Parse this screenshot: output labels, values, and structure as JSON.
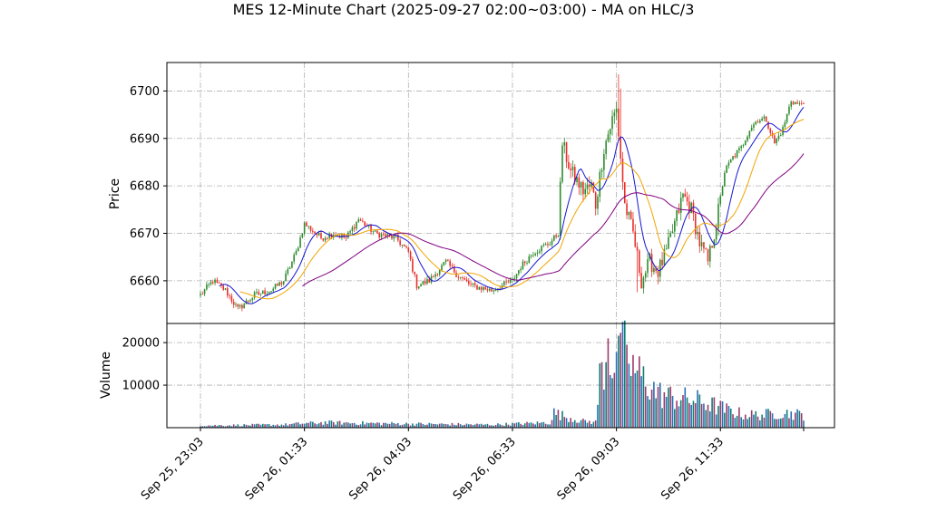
{
  "chart_data": {
    "type": "candlestick",
    "title": "MES 12-Minute Chart (2025-09-27 02:00~03:00) - MA on HLC/3",
    "grid": true,
    "grid_style": "dash-dot",
    "x_tick_labels": [
      "Sep 25, 23:03",
      "Sep 26, 01:33",
      "Sep 26, 04:03",
      "Sep 26, 06:33",
      "Sep 26, 09:03",
      "Sep 26, 11:33"
    ],
    "price_panel": {
      "ylabel": "Price",
      "ylim": [
        6651,
        6706
      ],
      "yticks": [
        6660,
        6670,
        6680,
        6690,
        6700
      ],
      "up_color": "#2e8b2e",
      "down_color": "#e8302a",
      "anchors": [
        [
          0,
          6657
        ],
        [
          6,
          6660
        ],
        [
          12,
          6658
        ],
        [
          18,
          6654
        ],
        [
          26,
          6657
        ],
        [
          34,
          6658
        ],
        [
          40,
          6660
        ],
        [
          46,
          6666
        ],
        [
          50,
          6672
        ],
        [
          58,
          6669
        ],
        [
          64,
          6670
        ],
        [
          70,
          6669
        ],
        [
          76,
          6673
        ],
        [
          84,
          6670
        ],
        [
          94,
          6669
        ],
        [
          100,
          6666
        ],
        [
          104,
          6659
        ],
        [
          110,
          6660
        ],
        [
          118,
          6664
        ],
        [
          124,
          6661
        ],
        [
          130,
          6659
        ],
        [
          140,
          6658
        ],
        [
          150,
          6660
        ],
        [
          154,
          6663
        ],
        [
          160,
          6666
        ],
        [
          168,
          6668
        ],
        [
          172,
          6670
        ],
        [
          174,
          6689
        ],
        [
          178,
          6683
        ],
        [
          184,
          6679
        ],
        [
          188,
          6680
        ],
        [
          190,
          6676
        ],
        [
          194,
          6688
        ],
        [
          198,
          6694
        ],
        [
          200,
          6696
        ],
        [
          201,
          6691
        ],
        [
          204,
          6676
        ],
        [
          208,
          6670
        ],
        [
          212,
          6660
        ],
        [
          216,
          6664
        ],
        [
          220,
          6662
        ],
        [
          224,
          6666
        ],
        [
          228,
          6672
        ],
        [
          232,
          6678
        ],
        [
          236,
          6675
        ],
        [
          240,
          6668
        ],
        [
          244,
          6664
        ],
        [
          248,
          6672
        ],
        [
          252,
          6683
        ],
        [
          256,
          6686
        ],
        [
          260,
          6688
        ],
        [
          264,
          6692
        ],
        [
          268,
          6694
        ],
        [
          272,
          6694
        ],
        [
          276,
          6689
        ],
        [
          280,
          6692
        ],
        [
          284,
          6698
        ],
        [
          288,
          6697
        ],
        [
          290,
          6698
        ]
      ],
      "ma_series": [
        {
          "color": "#1515d0",
          "period": 10
        },
        {
          "color": "#f2a400",
          "period": 20
        },
        {
          "color": "#800080",
          "period": 50
        }
      ]
    },
    "volume_panel": {
      "ylabel": "Volume",
      "ylim": [
        0,
        24500
      ],
      "yticks": [
        10000,
        20000
      ],
      "bar_color_a": "#0f7f76",
      "bar_color_b": "#9c3a6b",
      "bar_color_c": "#2a6fb5",
      "profile": [
        [
          0,
          500
        ],
        [
          40,
          700
        ],
        [
          50,
          1000
        ],
        [
          60,
          1200
        ],
        [
          100,
          900
        ],
        [
          140,
          700
        ],
        [
          168,
          1200
        ],
        [
          170,
          3500
        ],
        [
          176,
          2500
        ],
        [
          184,
          1500
        ],
        [
          190,
          1300
        ],
        [
          192,
          12000
        ],
        [
          196,
          17000
        ],
        [
          200,
          14000
        ],
        [
          202,
          17000
        ],
        [
          204,
          18000
        ],
        [
          208,
          14000
        ],
        [
          214,
          11000
        ],
        [
          220,
          8000
        ],
        [
          228,
          7000
        ],
        [
          236,
          6500
        ],
        [
          242,
          6000
        ],
        [
          248,
          5000
        ],
        [
          254,
          4000
        ],
        [
          262,
          3000
        ],
        [
          270,
          3000
        ],
        [
          280,
          3500
        ],
        [
          290,
          3000
        ]
      ]
    }
  }
}
